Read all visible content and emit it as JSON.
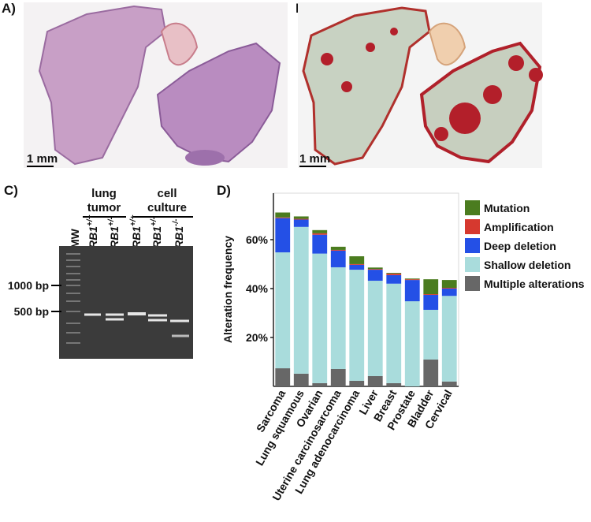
{
  "panel_a": {
    "label": "A)",
    "scale_bar": "1 mm"
  },
  "panel_b": {
    "label": "B)",
    "scale_bar": "1 mm"
  },
  "panel_c": {
    "label": "C)",
    "groups": [
      {
        "lines": [
          "lung",
          "tumor"
        ]
      },
      {
        "lines": [
          "cell",
          "culture"
        ]
      }
    ],
    "lanes": [
      {
        "name": "MW"
      },
      {
        "gene": "RB1",
        "genotype": "+/+"
      },
      {
        "gene": "RB1",
        "genotype": "+/-"
      },
      {
        "gene": "RB1",
        "genotype": "+/+"
      },
      {
        "gene": "RB1",
        "genotype": "+/-"
      },
      {
        "gene": "RB1",
        "genotype": "-/-"
      }
    ],
    "markers": [
      "1000 bp",
      "500 bp"
    ]
  },
  "chart_data": {
    "type": "stacked_bar",
    "label": "D)",
    "y_label": "Alteration frequency",
    "categories": [
      "Sarcoma",
      "Lung squamous",
      "Ovarian",
      "Uterine carcinosarcoma",
      "Lung adenocarcinoma",
      "Liver",
      "Breast",
      "Prostate",
      "Bladder",
      "Cervical"
    ],
    "series": [
      {
        "name": "Multiple alterations",
        "color": "#676767",
        "values": [
          7.4,
          5.2,
          1.3,
          7.1,
          2.3,
          4.2,
          1.3,
          0,
          11,
          2
        ]
      },
      {
        "name": "Shallow deletion",
        "color": "#a9dcdc",
        "values": [
          47.4,
          60,
          53,
          41.6,
          45.4,
          39,
          40.7,
          34.8,
          20.3,
          35
        ]
      },
      {
        "name": "Deep deletion",
        "color": "#2450e6",
        "values": [
          14,
          3,
          7.7,
          6.8,
          2,
          4.5,
          3.5,
          8.7,
          6.1,
          3
        ]
      },
      {
        "name": "Amplification",
        "color": "#d6392f",
        "values": [
          0.3,
          0.3,
          0.6,
          0.3,
          0.3,
          0.3,
          0.6,
          0.3,
          0.3,
          0.3
        ]
      },
      {
        "name": "Mutation",
        "color": "#4b7c1f",
        "values": [
          2,
          1,
          1.3,
          1.3,
          3.2,
          0.6,
          0.3,
          0.3,
          6.1,
          3.2
        ]
      }
    ],
    "ylim": [
      0,
      79
    ],
    "yticks": [
      {
        "value": 20,
        "label": "20%"
      },
      {
        "value": 40,
        "label": "40%"
      },
      {
        "value": 60,
        "label": "60%"
      }
    ]
  }
}
